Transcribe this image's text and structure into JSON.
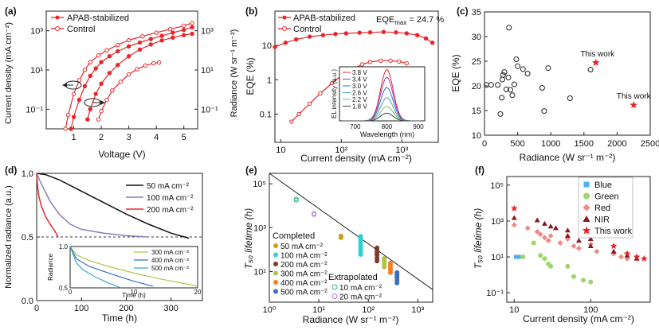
{
  "panels": {
    "a": {
      "label": "(a)",
      "xlabel": "Voltage (V)",
      "ylabel_left": "Current density (mA cm⁻²)",
      "ylabel_right": "Radiance (W sr⁻¹ m⁻²)",
      "legend": [
        "APAB-stabilized",
        "Control"
      ]
    },
    "b": {
      "label": "(b)",
      "xlabel": "Current density (mA cm⁻²)",
      "ylabel": "EQE (%)",
      "legend": [
        "APAB-stabilized",
        "Control"
      ],
      "annotation": "EQE",
      "annotation_sub": "max",
      "annotation_value": " = 24.7 %",
      "inset": {
        "xlabel": "Wavelength (nm)",
        "ylabel": "EL intensity (a.u.)",
        "legend": [
          "3.8 V",
          "3.4 V",
          "3.0 V",
          "2.6 V",
          "2.2 V",
          "1.8 V"
        ],
        "xticks": [
          "700",
          "800",
          "900"
        ]
      }
    },
    "c": {
      "label": "(c)",
      "xlabel": "Radiance (W sr⁻¹ m⁻²)",
      "ylabel": "EQE (%)",
      "annotations": [
        "This work",
        "This work"
      ]
    },
    "d": {
      "label": "(d)",
      "xlabel": "Time (h)",
      "ylabel": "Normalized radiance (a.u.)",
      "legend": [
        "50 mA cm⁻²",
        "100 mA cm⁻²",
        "200 mA cm⁻²"
      ],
      "inset": {
        "xlabel": "Time (h)",
        "ylabel": "Radiance",
        "legend": [
          "300 mA cm⁻²",
          "400 mA cm⁻²",
          "500 mA cm⁻²"
        ]
      }
    },
    "e": {
      "label": "(e)",
      "xlabel": "Radiance (W sr⁻¹ m⁻²)",
      "ylabel": "T₅₀ lifetime (h)",
      "group_completed": "Completed",
      "group_extrapolated": "Extrapolated",
      "legend_completed": [
        "50 mA cm⁻²",
        "100 mA cm⁻²",
        "200 mA cm⁻²",
        "300 mA cm⁻²",
        "400 mA cm⁻²",
        "500 mA cm⁻²"
      ],
      "legend_extrapolated": [
        "10 mA cm⁻²",
        "20 mA cm⁻²"
      ]
    },
    "f": {
      "label": "(f)",
      "xlabel": "Current density (mA cm⁻²)",
      "ylabel": "T₅₀ lifetime (h)",
      "legend": [
        "Blue",
        "Green",
        "Red",
        "NIR",
        "This work"
      ]
    }
  },
  "colors": {
    "red": "#e8262a",
    "d50": "#111111",
    "d100": "#8c7fb8",
    "d200": "#e8262a",
    "d300": "#b3c24a",
    "d400": "#3a6fc4",
    "d500": "#38a8d8",
    "blue": "#4fb3e8",
    "green": "#9ed66a",
    "pink": "#ef8a8a",
    "nir": "#8b1520"
  },
  "chart_data": [
    {
      "panel": "a",
      "type": "line",
      "xlim": [
        0,
        5.5
      ],
      "ylim_left": [
        0.01,
        10000
      ],
      "scale_left": "log",
      "ylim_right": [
        0.01,
        10000
      ],
      "scale_right": "log",
      "xticks": [
        1,
        2,
        3,
        4,
        5
      ],
      "yticks_left": [
        "10⁻¹",
        "10¹",
        "10³"
      ],
      "yticks_right": [
        "10⁻¹",
        "10¹",
        "10³"
      ],
      "series": [
        {
          "name": "APAB-stabilized",
          "axis": "left",
          "x": [
            0.9,
            1.0,
            1.2,
            1.4,
            1.6,
            1.8,
            2.0,
            2.3,
            2.6,
            3.0,
            3.4,
            3.8,
            4.2,
            4.6,
            5.0,
            5.3
          ],
          "y": [
            0.01,
            0.04,
            0.3,
            1.5,
            5,
            12,
            25,
            50,
            90,
            160,
            250,
            380,
            550,
            800,
            1100,
            1500
          ]
        },
        {
          "name": "Control",
          "axis": "left",
          "x": [
            0.7,
            0.8,
            1.0,
            1.2,
            1.4,
            1.6,
            1.9,
            2.2,
            2.6,
            3.0,
            3.5,
            4.0,
            4.5,
            5.0,
            5.3
          ],
          "y": [
            0.01,
            0.05,
            0.6,
            3,
            10,
            25,
            55,
            100,
            190,
            330,
            520,
            800,
            1200,
            1800,
            2500
          ]
        },
        {
          "name": "APAB-stabilized",
          "axis": "right",
          "x": [
            1.5,
            1.6,
            1.8,
            2.0,
            2.3,
            2.6,
            3.0,
            3.4,
            3.8,
            4.2,
            4.6,
            5.0,
            5.3
          ],
          "y": [
            0.03,
            0.1,
            0.6,
            2,
            7,
            18,
            50,
            110,
            200,
            320,
            450,
            600,
            700
          ]
        },
        {
          "name": "Control",
          "axis": "right",
          "x": [
            1.9,
            2.0,
            2.2,
            2.4,
            2.7,
            3.0,
            3.3,
            3.6,
            3.9,
            4.1
          ],
          "y": [
            0.03,
            0.08,
            0.3,
            0.9,
            2.5,
            6,
            11,
            17,
            22,
            24
          ]
        }
      ]
    },
    {
      "panel": "b",
      "type": "line",
      "xscale": "log",
      "xlim": [
        8,
        4000
      ],
      "yscale": "log",
      "ylim": [
        0.015,
        100
      ],
      "xticks": [
        "10",
        "10²",
        "10³"
      ],
      "yticks": [
        "0.1",
        "1",
        "10"
      ],
      "series": [
        {
          "name": "APAB-stabilized",
          "x": [
            8,
            12,
            18,
            30,
            50,
            80,
            120,
            200,
            300,
            500,
            800,
            1200,
            1800,
            2500,
            3200
          ],
          "y": [
            9,
            12,
            15,
            18,
            20,
            21.5,
            22.5,
            23.5,
            24,
            24.7,
            24,
            22.5,
            20,
            16,
            12
          ]
        },
        {
          "name": "Control",
          "x": [
            15,
            20,
            30,
            45,
            70,
            100,
            150,
            220,
            300,
            450,
            650,
            900,
            1200
          ],
          "y": [
            0.06,
            0.1,
            0.2,
            0.4,
            0.8,
            1.3,
            2,
            2.8,
            3.3,
            3.6,
            3.6,
            3.4,
            3.0
          ]
        }
      ],
      "inset": {
        "peak_nm": 800,
        "xlim": [
          650,
          920
        ],
        "heights": [
          1.0,
          0.85,
          0.65,
          0.45,
          0.28,
          0.15
        ],
        "series_names": [
          "3.8 V",
          "3.4 V",
          "3.0 V",
          "2.6 V",
          "2.2 V",
          "1.8 V"
        ]
      }
    },
    {
      "panel": "c",
      "type": "scatter",
      "xlim": [
        0,
        2500
      ],
      "ylim": [
        10,
        35
      ],
      "xticks": [
        0,
        500,
        1000,
        1500,
        2000,
        2500
      ],
      "yticks": [
        10,
        15,
        20,
        25,
        30,
        35
      ],
      "points": [
        [
          30,
          20.2
        ],
        [
          100,
          20.2
        ],
        [
          200,
          20.2
        ],
        [
          240,
          14.3
        ],
        [
          260,
          17.6
        ],
        [
          270,
          21.3
        ],
        [
          280,
          22.2
        ],
        [
          300,
          22.8
        ],
        [
          330,
          19.3
        ],
        [
          360,
          21.7
        ],
        [
          370,
          31.8
        ],
        [
          390,
          19.2
        ],
        [
          420,
          18.1
        ],
        [
          450,
          20.3
        ],
        [
          480,
          25.4
        ],
        [
          500,
          24.0
        ],
        [
          580,
          23.4
        ],
        [
          650,
          22.5
        ],
        [
          870,
          19.6
        ],
        [
          900,
          14.9
        ],
        [
          960,
          23.6
        ],
        [
          1290,
          17.5
        ],
        [
          1600,
          23.3
        ]
      ],
      "this_work": [
        [
          1680,
          24.7
        ],
        [
          2250,
          16.1
        ]
      ]
    },
    {
      "panel": "d",
      "type": "line",
      "xlim": [
        0,
        370
      ],
      "ylim": [
        0.0,
        1.0
      ],
      "xticks": [
        0,
        100,
        200,
        300
      ],
      "yticks": [
        0.0,
        0.5,
        1.0
      ],
      "threshold": 0.5,
      "series": [
        {
          "name": "50 mA cm⁻²",
          "x": [
            0,
            20,
            50,
            100,
            150,
            200,
            250,
            300,
            340
          ],
          "y": [
            1.0,
            0.99,
            0.95,
            0.86,
            0.77,
            0.68,
            0.6,
            0.53,
            0.49
          ]
        },
        {
          "name": "100 mA cm⁻²",
          "x": [
            0,
            10,
            20,
            30,
            50,
            75,
            100,
            150,
            200,
            250
          ],
          "y": [
            1.0,
            0.92,
            0.85,
            0.78,
            0.68,
            0.6,
            0.56,
            0.53,
            0.51,
            0.5
          ]
        },
        {
          "name": "200 mA cm⁻²",
          "x": [
            0,
            2,
            5,
            10,
            20,
            30,
            40,
            48
          ],
          "y": [
            1.0,
            0.9,
            0.82,
            0.75,
            0.66,
            0.6,
            0.55,
            0.5
          ]
        }
      ],
      "inset": {
        "xlim": [
          0,
          20
        ],
        "ylim": [
          0.5,
          1.0
        ],
        "xticks": [
          0,
          10,
          20
        ],
        "yticks": [
          0.5,
          1.0
        ],
        "series": [
          {
            "name": "300 mA cm⁻²",
            "x": [
              0,
              1,
              3,
              6,
              10,
              14,
              18,
              20
            ],
            "y": [
              1.0,
              0.9,
              0.83,
              0.76,
              0.68,
              0.61,
              0.55,
              0.52
            ]
          },
          {
            "name": "400 mA cm⁻²",
            "x": [
              0,
              1,
              3,
              6,
              10,
              13
            ],
            "y": [
              1.0,
              0.85,
              0.76,
              0.68,
              0.58,
              0.52
            ]
          },
          {
            "name": "500 mA cm⁻²",
            "x": [
              0,
              1,
              2,
              4,
              6,
              8
            ],
            "y": [
              1.0,
              0.8,
              0.72,
              0.63,
              0.56,
              0.5
            ]
          }
        ]
      }
    },
    {
      "panel": "e",
      "type": "scatter",
      "xscale": "log",
      "xlim": [
        1,
        2000
      ],
      "yscale": "log",
      "ylim": [
        0.4,
        300000
      ],
      "xticks": [
        "10⁰",
        "10¹",
        "10²",
        "10³"
      ],
      "yticks": [
        "10¹",
        "10³",
        "10⁵"
      ],
      "fit_line": {
        "x": [
          1,
          2000
        ],
        "y": [
          300000,
          1.5
        ]
      },
      "groups": [
        {
          "name": "50 mA cm⁻²",
          "x": 28,
          "y": [
            350,
            380,
            420
          ]
        },
        {
          "name": "100 mA cm⁻²",
          "x": 70,
          "y": [
            60,
            80,
            100,
            130,
            170,
            220,
            280,
            340,
            400
          ]
        },
        {
          "name": "200 mA cm⁻²",
          "x": 150,
          "y": [
            30,
            40,
            55,
            70,
            90,
            120
          ]
        },
        {
          "name": "300 mA cm⁻²",
          "x": 210,
          "y": [
            16,
            20,
            26,
            32,
            40
          ]
        },
        {
          "name": "400 mA cm⁻²",
          "x": 280,
          "y": [
            9,
            12,
            15,
            19,
            24
          ]
        },
        {
          "name": "500 mA cm⁻²",
          "x": 380,
          "y": [
            3,
            4,
            5.5,
            7,
            9
          ]
        },
        {
          "name": "10 mA cm⁻²",
          "x": 3.5,
          "y": [
            18000,
            20000
          ]
        },
        {
          "name": "20 mA cm⁻²",
          "x": 8,
          "y": [
            4000,
            4500
          ]
        }
      ]
    },
    {
      "panel": "f",
      "type": "scatter",
      "xscale": "log",
      "xlim": [
        8,
        600
      ],
      "yscale": "log",
      "ylim": [
        0.03,
        300000
      ],
      "xticks": [
        "10",
        "100"
      ],
      "yticks": [
        "10⁻¹",
        "10¹",
        "10³",
        "10⁵"
      ],
      "series": [
        {
          "name": "Blue",
          "points": [
            [
              10.5,
              10
            ],
            [
              11.5,
              10
            ]
          ]
        },
        {
          "name": "Green",
          "points": [
            [
              13,
              10
            ],
            [
              18,
              60
            ],
            [
              22,
              12
            ],
            [
              25,
              8
            ],
            [
              28,
              4
            ],
            [
              30,
              3
            ],
            [
              50,
              3
            ],
            [
              60,
              0.8
            ],
            [
              80,
              0.5
            ],
            [
              100,
              0.4
            ]
          ]
        },
        {
          "name": "Red",
          "points": [
            [
              10,
              600
            ],
            [
              15,
              400
            ],
            [
              20,
              250
            ],
            [
              22,
              180
            ],
            [
              25,
              120
            ],
            [
              28,
              80
            ],
            [
              30,
              150
            ],
            [
              40,
              60
            ],
            [
              50,
              100
            ],
            [
              60,
              40
            ],
            [
              70,
              30
            ],
            [
              100,
              50
            ],
            [
              120,
              20
            ],
            [
              200,
              15
            ],
            [
              250,
              10
            ],
            [
              300,
              8
            ]
          ]
        },
        {
          "name": "NIR",
          "points": [
            [
              10,
              1500
            ],
            [
              20,
              1100
            ],
            [
              25,
              700
            ],
            [
              30,
              500
            ],
            [
              35,
              400
            ],
            [
              50,
              300
            ],
            [
              50,
              150
            ],
            [
              70,
              80
            ],
            [
              100,
              100
            ],
            [
              100,
              40
            ],
            [
              200,
              20
            ],
            [
              300,
              12
            ],
            [
              400,
              8
            ]
          ]
        },
        {
          "name": "This work",
          "points": [
            [
              10,
              5000
            ],
            [
              200,
              40
            ],
            [
              300,
              15
            ],
            [
              400,
              10
            ],
            [
              500,
              8
            ]
          ]
        }
      ]
    }
  ]
}
